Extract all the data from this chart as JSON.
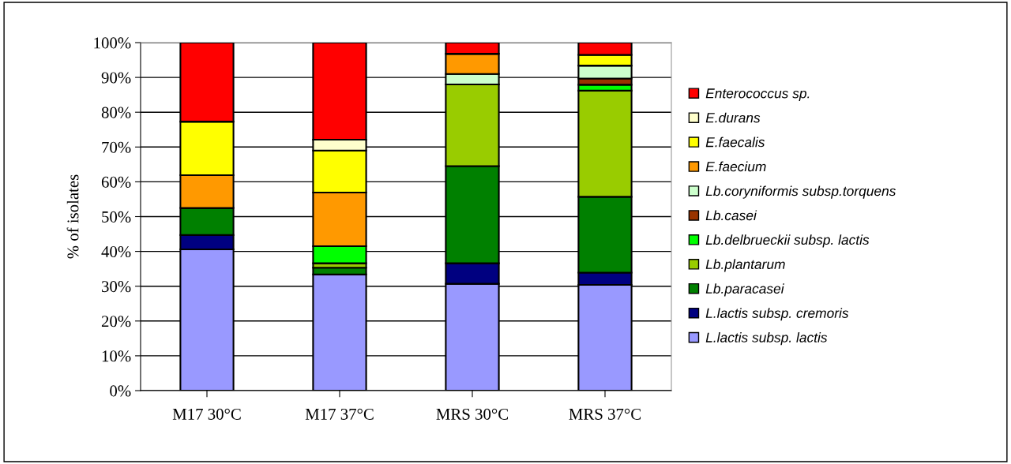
{
  "chart_data": {
    "type": "bar",
    "stacked": true,
    "ylabel": "% of isolates",
    "categories": [
      "M17 30°C",
      "M17 37°C",
      "MRS 30°C",
      "MRS 37°C"
    ],
    "ylim": [
      0,
      100
    ],
    "yticks": [
      {
        "value": 0,
        "label": "0%"
      },
      {
        "value": 10,
        "label": "10%"
      },
      {
        "value": 20,
        "label": "20%"
      },
      {
        "value": 30,
        "label": "30%"
      },
      {
        "value": 40,
        "label": "40%"
      },
      {
        "value": 50,
        "label": "50%"
      },
      {
        "value": 60,
        "label": "60%"
      },
      {
        "value": 70,
        "label": "70%"
      },
      {
        "value": 80,
        "label": "80%"
      },
      {
        "value": 90,
        "label": "90%"
      },
      {
        "value": 100,
        "label": "100%"
      }
    ],
    "grid": "y",
    "legend": "right",
    "series": [
      {
        "name": "L.lactis subsp. lactis",
        "color": "#9999ff",
        "values": [
          40.6,
          33.4,
          30.7,
          30.4
        ]
      },
      {
        "name": "L.lactis subsp. cremoris",
        "color": "#000080",
        "values": [
          4.1,
          0,
          5.9,
          3.5
        ]
      },
      {
        "name": "Lb.paracasei",
        "color": "#008000",
        "values": [
          7.8,
          1.9,
          27.9,
          21.8
        ]
      },
      {
        "name": "Lb.plantarum",
        "color": "#99cc00",
        "values": [
          0,
          1.3,
          23.5,
          30.5
        ]
      },
      {
        "name": "Lb.delbrueckii subsp. lactis",
        "color": "#00ff00",
        "values": [
          0,
          4.9,
          0,
          1.7
        ]
      },
      {
        "name": "Lb.casei",
        "color": "#993300",
        "values": [
          0,
          0,
          0,
          1.8
        ]
      },
      {
        "name": "Lb.coryniformis subsp.torquens",
        "color": "#ccffcc",
        "values": [
          0,
          0,
          3.0,
          3.7
        ]
      },
      {
        "name": "E.faecium",
        "color": "#ff9900",
        "values": [
          9.4,
          15.4,
          5.8,
          0
        ]
      },
      {
        "name": "E.faecalis",
        "color": "#ffff00",
        "values": [
          15.4,
          12.1,
          0,
          3.1
        ]
      },
      {
        "name": "E.durans",
        "color": "#ffffcc",
        "values": [
          0,
          3.1,
          0,
          0
        ]
      },
      {
        "name": "Enterococcus sp.",
        "color": "#ff0000",
        "values": [
          22.7,
          27.9,
          3.2,
          3.5
        ]
      }
    ]
  }
}
